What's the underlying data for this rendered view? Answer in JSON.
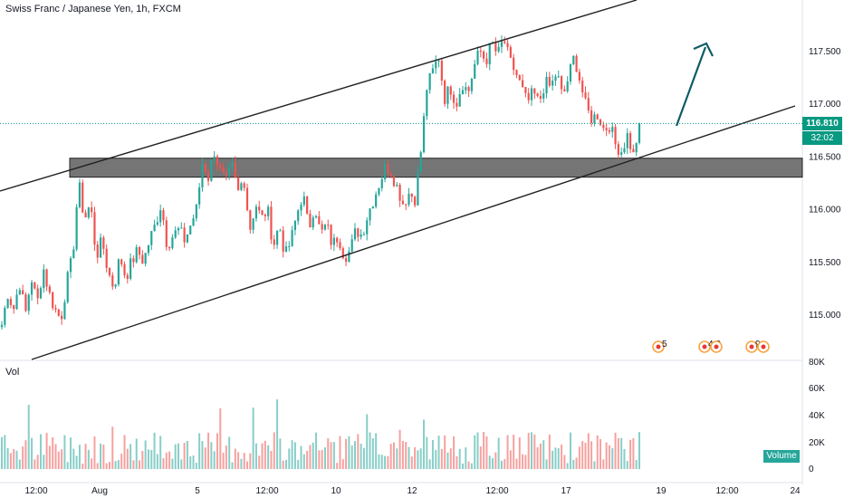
{
  "header": {
    "title": "Swiss Franc / Japanese Yen, 1h, FXCM"
  },
  "price": {
    "current": "116.810",
    "countdown": "32:02"
  },
  "volume": {
    "pane_label": "Vol",
    "legend": "Volume"
  },
  "events": [
    {
      "label": "5"
    },
    {
      "label": "4 2"
    },
    {
      "label": "9"
    }
  ],
  "colors": {
    "up": "#26a69a",
    "down": "#ef5350",
    "price_line": "#089981",
    "arrow": "#0d5c63",
    "zone": "#5d5d5d"
  },
  "chart_data": [
    {
      "type": "candlestick",
      "title": "Swiss Franc / Japanese Yen, 1h, FXCM",
      "y_ticks": [
        "117.500",
        "117.000",
        "116.500",
        "116.000",
        "115.500",
        "115.000"
      ],
      "x_ticks": [
        "12:00",
        "Aug",
        "5",
        "12:00",
        "10",
        "12",
        "12:00",
        "17",
        "19",
        "12:00",
        "24"
      ],
      "ylim": [
        114.72,
        117.88
      ],
      "last_price": 116.81,
      "path": [
        114.9,
        115.2,
        115.05,
        115.3,
        115.0,
        115.35,
        115.1,
        115.45,
        115.2,
        115.05,
        114.95,
        115.3,
        115.55,
        116.25,
        115.9,
        116.05,
        115.55,
        115.7,
        115.4,
        115.25,
        115.55,
        115.35,
        115.5,
        115.6,
        115.5,
        115.7,
        115.85,
        116.05,
        115.65,
        115.75,
        115.8,
        115.7,
        115.85,
        116.0,
        116.45,
        116.3,
        116.55,
        116.35,
        116.25,
        116.4,
        116.15,
        116.3,
        115.8,
        116.05,
        115.9,
        116.0,
        115.65,
        115.85,
        115.55,
        115.7,
        115.95,
        116.15,
        115.8,
        116.05,
        115.75,
        115.85,
        115.65,
        115.75,
        115.55,
        115.6,
        115.8,
        115.75,
        115.95,
        116.1,
        116.25,
        116.4,
        116.35,
        116.2,
        116.05,
        116.15,
        116.1,
        116.55,
        117.15,
        117.3,
        117.45,
        117.05,
        117.15,
        117.0,
        117.2,
        117.1,
        117.35,
        117.5,
        117.4,
        117.58,
        117.45,
        117.62,
        117.4,
        117.3,
        117.15,
        117.0,
        117.1,
        117.0,
        117.2,
        117.15,
        117.3,
        117.05,
        117.25,
        117.45,
        117.2,
        116.95,
        116.85,
        116.9,
        116.75,
        116.8,
        116.6,
        116.55,
        116.7,
        116.5,
        116.81
      ],
      "volume_axis": [
        "80K",
        "60K",
        "40K",
        "20K",
        "0"
      ],
      "volume_range": [
        0,
        80000
      ],
      "volume_range_typical": [
        4000,
        28000
      ],
      "annotations": [
        "ascending channel lines",
        "support/resistance zone 116.30–116.48",
        "arrow pointing up"
      ]
    }
  ]
}
